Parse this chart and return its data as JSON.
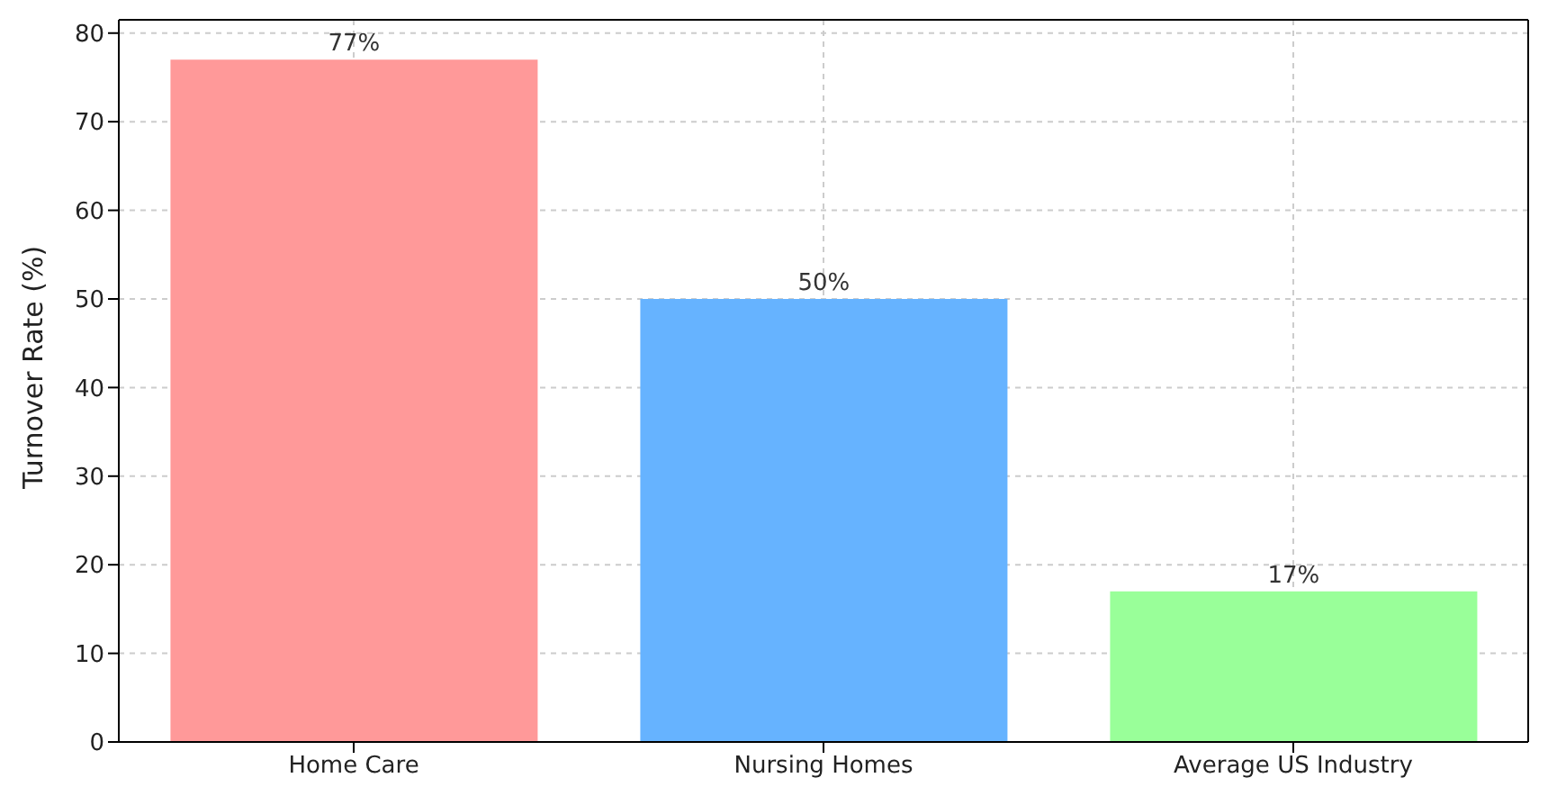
{
  "chart_data": {
    "type": "bar",
    "ylabel": "Turnover Rate (%)",
    "categories": [
      "Home Care",
      "Nursing Homes",
      "Average US Industry"
    ],
    "values": [
      77,
      50,
      17
    ],
    "colors": [
      "#ff9999",
      "#66b3ff",
      "#99ff99"
    ],
    "value_labels": [
      "77%",
      "50%",
      "17%"
    ],
    "ylim": [
      0,
      81.5
    ],
    "yticks": [
      0,
      10,
      20,
      30,
      40,
      50,
      60,
      70,
      80
    ],
    "grid": true
  }
}
